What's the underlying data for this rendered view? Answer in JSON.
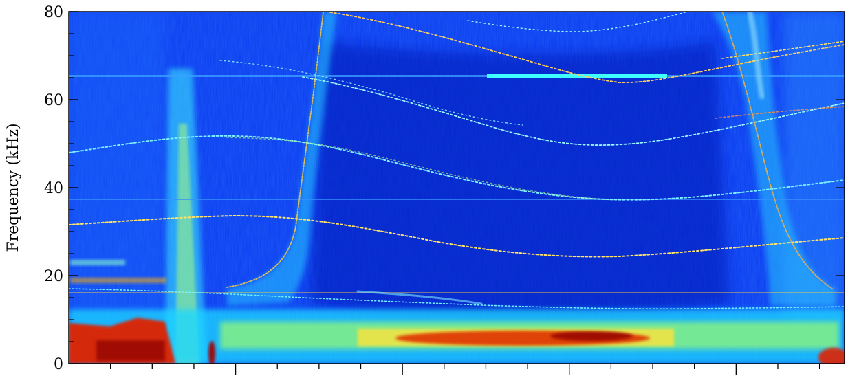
{
  "chart_data": {
    "type": "heatmap",
    "title": "",
    "xlabel": "",
    "ylabel": "Frequency (kHz)",
    "ylim": [
      0,
      80
    ],
    "y_ticks": [
      {
        "value": 0,
        "label": "0"
      },
      {
        "value": 20,
        "label": "20"
      },
      {
        "value": 40,
        "label": "40"
      },
      {
        "value": 60,
        "label": "60"
      },
      {
        "value": 80,
        "label": "80"
      }
    ],
    "y_minor_step": 5,
    "x_major_ticks": 4,
    "x_minor_per_major": 3,
    "x_tick_labels": [],
    "colormap": [
      "#00008f",
      "#0000ff",
      "#0080ff",
      "#00ffff",
      "#80ff80",
      "#ffff00",
      "#ff8000",
      "#ff0000",
      "#800000"
    ],
    "grid": false
  }
}
